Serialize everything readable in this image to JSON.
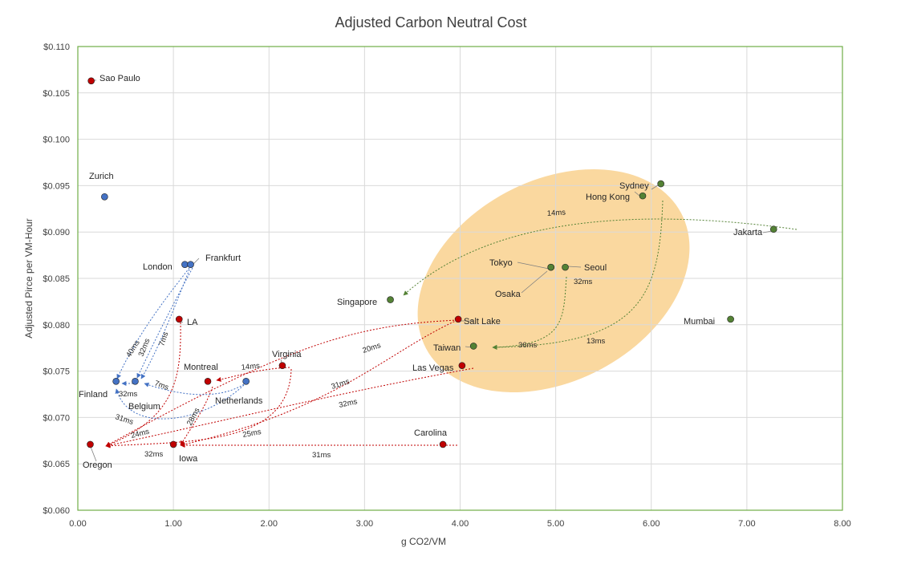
{
  "chart_data": {
    "type": "scatter",
    "title": "Adjusted Carbon Neutral Cost",
    "xlabel": "g CO2/VM",
    "ylabel": "Adjusted Pirce per VM-Hour",
    "xlim": [
      0,
      8
    ],
    "ylim": [
      0.06,
      0.11
    ],
    "x_ticks": [
      0,
      1,
      2,
      3,
      4,
      5,
      6,
      7,
      8
    ],
    "x_tick_labels": [
      "0.00",
      "1.00",
      "2.00",
      "3.00",
      "4.00",
      "5.00",
      "6.00",
      "7.00",
      "8.00"
    ],
    "y_ticks": [
      0.06,
      0.065,
      0.07,
      0.075,
      0.08,
      0.085,
      0.09,
      0.095,
      0.1,
      0.105,
      0.11
    ],
    "y_tick_labels": [
      "$0.060",
      "$0.065",
      "$0.070",
      "$0.075",
      "$0.080",
      "$0.085",
      "$0.090",
      "$0.095",
      "$0.100",
      "$0.105",
      "$0.110"
    ],
    "grid": true,
    "colors": {
      "europe": "#4472c4",
      "americas": "#c00000",
      "asia": "#548235",
      "highlight": "#f8cb7f",
      "plot_border": "#70ad47"
    },
    "points": [
      {
        "name": "Sao Paulo",
        "x": 0.14,
        "y": 0.1063,
        "group": "americas"
      },
      {
        "name": "Zurich",
        "x": 0.28,
        "y": 0.0938,
        "group": "europe"
      },
      {
        "name": "London",
        "x": 1.12,
        "y": 0.0865,
        "group": "europe"
      },
      {
        "name": "Frankfurt",
        "x": 1.18,
        "y": 0.0865,
        "group": "europe"
      },
      {
        "name": "LA",
        "x": 1.06,
        "y": 0.0806,
        "group": "americas"
      },
      {
        "name": "Finland",
        "x": 0.4,
        "y": 0.0739,
        "group": "europe"
      },
      {
        "name": "Belgium",
        "x": 0.6,
        "y": 0.0739,
        "group": "europe"
      },
      {
        "name": "Netherlands",
        "x": 1.76,
        "y": 0.0739,
        "group": "europe"
      },
      {
        "name": "Montreal",
        "x": 1.36,
        "y": 0.0739,
        "group": "americas"
      },
      {
        "name": "Virginia",
        "x": 2.14,
        "y": 0.0756,
        "group": "americas"
      },
      {
        "name": "Oregon",
        "x": 0.13,
        "y": 0.0671,
        "group": "americas"
      },
      {
        "name": "Iowa",
        "x": 1.0,
        "y": 0.0671,
        "group": "americas"
      },
      {
        "name": "Carolina",
        "x": 3.82,
        "y": 0.0671,
        "group": "americas"
      },
      {
        "name": "Salt Lake",
        "x": 3.98,
        "y": 0.0806,
        "group": "americas"
      },
      {
        "name": "Las Vegas",
        "x": 4.02,
        "y": 0.0756,
        "group": "americas"
      },
      {
        "name": "Singapore",
        "x": 3.27,
        "y": 0.0827,
        "group": "asia"
      },
      {
        "name": "Taiwan",
        "x": 4.14,
        "y": 0.0777,
        "group": "asia"
      },
      {
        "name": "Tokyo",
        "x": 4.95,
        "y": 0.0862,
        "group": "asia"
      },
      {
        "name": "Osaka",
        "x": 4.95,
        "y": 0.0862,
        "group": "asia"
      },
      {
        "name": "Seoul",
        "x": 5.1,
        "y": 0.0862,
        "group": "asia"
      },
      {
        "name": "Sydney",
        "x": 6.1,
        "y": 0.0952,
        "group": "asia"
      },
      {
        "name": "Hong Kong",
        "x": 5.91,
        "y": 0.0939,
        "group": "asia"
      },
      {
        "name": "Jakarta",
        "x": 7.28,
        "y": 0.0903,
        "group": "asia"
      },
      {
        "name": "Mumbai",
        "x": 6.83,
        "y": 0.0806,
        "group": "asia"
      }
    ],
    "latency_labels": [
      "14ms",
      "32ms",
      "36ms",
      "13ms",
      "20ms",
      "31ms",
      "32ms",
      "14ms",
      "7ms",
      "40ms",
      "32ms",
      "7ms",
      "32ms",
      "31ms",
      "24ms",
      "28ms",
      "25ms",
      "32ms",
      "31ms"
    ]
  }
}
